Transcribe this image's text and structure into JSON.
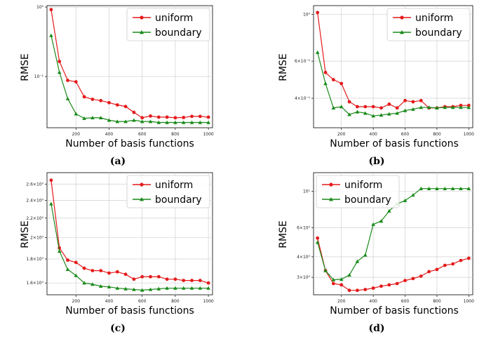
{
  "chart_data": [
    {
      "caption": "(a)",
      "type": "line",
      "xlabel": "Number of basis functions",
      "ylabel": "RMSE",
      "yscale": "log",
      "xlim": [
        25,
        1025
      ],
      "ylim": [
        0.0183,
        1.05
      ],
      "xticks": [
        200,
        400,
        600,
        800,
        1000
      ],
      "xtick_labels": [
        "200",
        "400",
        "600",
        "800",
        "1000"
      ],
      "yticks": [
        0.1,
        1
      ],
      "ytick_labels": [
        "10⁻¹",
        "10⁰"
      ],
      "grid": true,
      "legend": "top-right",
      "series": [
        {
          "name": "uniform",
          "color": "#e41a1c",
          "marker": "circle",
          "x": [
            50,
            100,
            150,
            200,
            250,
            300,
            350,
            400,
            450,
            500,
            550,
            600,
            650,
            700,
            750,
            800,
            850,
            900,
            950,
            1000
          ],
          "y": [
            0.92,
            0.165,
            0.088,
            0.084,
            0.051,
            0.047,
            0.045,
            0.042,
            0.039,
            0.037,
            0.0305,
            0.0255,
            0.027,
            0.026,
            0.026,
            0.0255,
            0.0257,
            0.0267,
            0.0267,
            0.026
          ]
        },
        {
          "name": "boundary",
          "color": "#1a8a1a",
          "marker": "triangle",
          "x": [
            50,
            100,
            150,
            200,
            250,
            300,
            350,
            400,
            450,
            500,
            550,
            600,
            650,
            700,
            750,
            800,
            850,
            900,
            950,
            1000
          ],
          "y": [
            0.39,
            0.115,
            0.048,
            0.029,
            0.025,
            0.0255,
            0.0255,
            0.0235,
            0.0225,
            0.0225,
            0.0235,
            0.0225,
            0.0225,
            0.0218,
            0.0218,
            0.0218,
            0.0218,
            0.0218,
            0.0218,
            0.0218
          ]
        }
      ]
    },
    {
      "caption": "(b)",
      "type": "line",
      "xlabel": "Number of basis functions",
      "ylabel": "RMSE",
      "yscale": "log",
      "xlim": [
        25,
        1025
      ],
      "ylim": [
        0.29,
        1.1
      ],
      "xticks": [
        200,
        400,
        600,
        800,
        1000
      ],
      "xtick_labels": [
        "200",
        "400",
        "600",
        "800",
        "1000"
      ],
      "yticks": [
        0.4,
        0.6,
        1
      ],
      "ytick_labels": [
        "4×10⁻¹",
        "6×10⁻¹",
        "10⁰"
      ],
      "grid": true,
      "legend": "top-right",
      "series": [
        {
          "name": "uniform",
          "color": "#e41a1c",
          "marker": "circle",
          "x": [
            50,
            100,
            150,
            200,
            250,
            300,
            350,
            400,
            450,
            500,
            550,
            600,
            650,
            700,
            750,
            800,
            850,
            900,
            950,
            1000
          ],
          "y": [
            1.02,
            0.53,
            0.49,
            0.47,
            0.385,
            0.365,
            0.365,
            0.365,
            0.36,
            0.375,
            0.36,
            0.39,
            0.385,
            0.39,
            0.36,
            0.36,
            0.365,
            0.365,
            0.37,
            0.37
          ]
        },
        {
          "name": "boundary",
          "color": "#1a8a1a",
          "marker": "triangle",
          "x": [
            50,
            100,
            150,
            200,
            250,
            300,
            350,
            400,
            450,
            500,
            550,
            600,
            650,
            700,
            750,
            800,
            850,
            900,
            950,
            1000
          ],
          "y": [
            0.66,
            0.47,
            0.36,
            0.365,
            0.335,
            0.345,
            0.34,
            0.33,
            0.333,
            0.337,
            0.34,
            0.35,
            0.355,
            0.362,
            0.362,
            0.36,
            0.362,
            0.362,
            0.362,
            0.362
          ]
        }
      ]
    },
    {
      "caption": "(c)",
      "type": "line",
      "xlabel": "Number of basis functions",
      "ylabel": "RMSE",
      "yscale": "log",
      "xlim": [
        25,
        1025
      ],
      "ylim": [
        1.51,
        2.75
      ],
      "xticks": [
        200,
        400,
        600,
        800,
        1000
      ],
      "xtick_labels": [
        "200",
        "400",
        "600",
        "800",
        "1000"
      ],
      "yticks": [
        1.6,
        1.8,
        2.0,
        2.2,
        2.4,
        2.6
      ],
      "ytick_labels": [
        "1.6×10⁰",
        "1.8×10⁰",
        "2×10⁰",
        "2.2×10⁰",
        "2.4×10⁰",
        "2.6×10⁰"
      ],
      "grid": true,
      "legend": "top-right",
      "series": [
        {
          "name": "uniform",
          "color": "#e41a1c",
          "marker": "circle",
          "x": [
            50,
            100,
            150,
            200,
            250,
            300,
            350,
            400,
            450,
            500,
            550,
            600,
            650,
            700,
            750,
            800,
            850,
            900,
            950,
            1000
          ],
          "y": [
            2.65,
            1.9,
            1.79,
            1.77,
            1.72,
            1.7,
            1.7,
            1.68,
            1.69,
            1.67,
            1.63,
            1.65,
            1.65,
            1.65,
            1.63,
            1.63,
            1.62,
            1.62,
            1.62,
            1.6
          ]
        },
        {
          "name": "boundary",
          "color": "#1a8a1a",
          "marker": "triangle",
          "x": [
            50,
            100,
            150,
            200,
            250,
            300,
            350,
            400,
            450,
            500,
            550,
            600,
            650,
            700,
            750,
            800,
            850,
            900,
            950,
            1000
          ],
          "y": [
            2.36,
            1.87,
            1.71,
            1.66,
            1.6,
            1.59,
            1.575,
            1.57,
            1.56,
            1.555,
            1.55,
            1.545,
            1.55,
            1.555,
            1.56,
            1.56,
            1.56,
            1.56,
            1.56,
            1.56
          ]
        }
      ]
    },
    {
      "caption": "(d)",
      "type": "line",
      "xlabel": "Number of basis functions",
      "ylabel": "RMSE",
      "yscale": "log",
      "xlim": [
        25,
        1025
      ],
      "ylim": [
        2.35,
        13.0
      ],
      "xticks": [
        200,
        400,
        600,
        800,
        1000
      ],
      "xtick_labels": [
        "200",
        "400",
        "600",
        "800",
        "1000"
      ],
      "yticks": [
        3,
        4,
        6,
        10
      ],
      "ytick_labels": [
        "3×10⁰",
        "4×10⁰",
        "6×10⁰",
        "10¹"
      ],
      "grid": true,
      "legend": "top-left",
      "series": [
        {
          "name": "uniform",
          "color": "#e41a1c",
          "marker": "circle",
          "x": [
            50,
            100,
            150,
            200,
            250,
            300,
            350,
            400,
            450,
            500,
            550,
            600,
            650,
            700,
            750,
            800,
            850,
            900,
            950,
            1000
          ],
          "y": [
            5.2,
            3.3,
            2.75,
            2.7,
            2.5,
            2.5,
            2.53,
            2.58,
            2.65,
            2.7,
            2.75,
            2.87,
            2.95,
            3.05,
            3.25,
            3.35,
            3.55,
            3.62,
            3.8,
            3.92
          ]
        },
        {
          "name": "boundary",
          "color": "#1a8a1a",
          "marker": "triangle",
          "x": [
            50,
            100,
            150,
            200,
            250,
            300,
            350,
            400,
            450,
            500,
            550,
            600,
            650,
            700,
            750,
            800,
            850,
            900,
            950,
            1000
          ],
          "y": [
            4.9,
            3.3,
            2.9,
            2.92,
            3.1,
            3.75,
            4.1,
            6.3,
            6.6,
            7.6,
            8.4,
            8.8,
            9.5,
            10.4,
            10.4,
            10.4,
            10.4,
            10.4,
            10.4,
            10.4
          ]
        }
      ]
    }
  ]
}
